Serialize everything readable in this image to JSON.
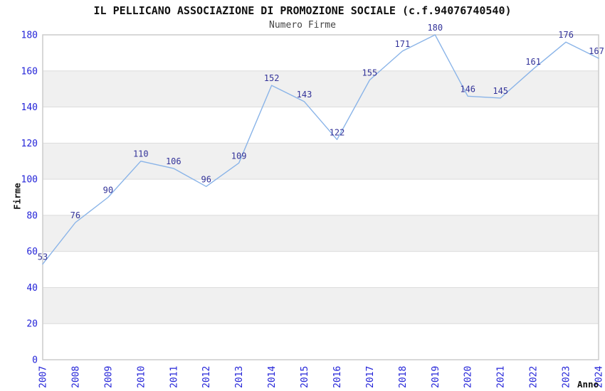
{
  "title": "IL PELLICANO ASSOCIAZIONE DI PROMOZIONE SOCIALE (c.f.94076740540)",
  "chart_data": {
    "type": "line",
    "title": "IL PELLICANO ASSOCIAZIONE DI PROMOZIONE SOCIALE (c.f.94076740540)",
    "subtitle": "Numero Firme",
    "xlabel": "Anno",
    "ylabel": "Firme",
    "categories": [
      "2007",
      "2008",
      "2009",
      "2010",
      "2011",
      "2012",
      "2013",
      "2014",
      "2015",
      "2016",
      "2017",
      "2018",
      "2019",
      "2020",
      "2021",
      "2022",
      "2023",
      "2024"
    ],
    "series": [
      {
        "name": "Numero Firme",
        "values": [
          53,
          76,
          90,
          110,
          106,
          96,
          109,
          152,
          143,
          122,
          155,
          171,
          180,
          146,
          145,
          161,
          176,
          167
        ]
      }
    ],
    "ylim": [
      0,
      180
    ],
    "ytick_step": 20,
    "yticks": [
      0,
      20,
      40,
      60,
      80,
      100,
      120,
      140,
      160,
      180
    ],
    "grid": "horizontal-bands",
    "legend": false,
    "point_labels": true,
    "colors": {
      "line": "#8ab4e8",
      "tick_label": "#2323d8",
      "point_label": "#333399",
      "band_fill": "#f0f0f0",
      "gridline": "#dcdcdc",
      "plot_border": "#cccccc",
      "title": "#111111",
      "subtitle": "#444444",
      "axis_title": "#111111"
    }
  }
}
